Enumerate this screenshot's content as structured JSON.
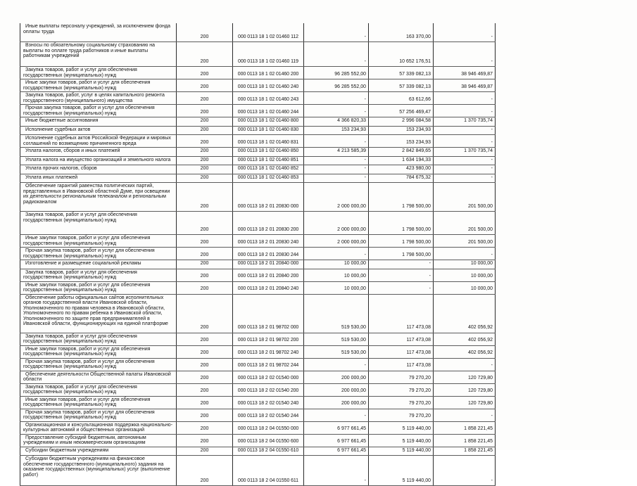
{
  "table": {
    "rows": [
      {
        "name": "Иные выплаты персоналу учреждений, за исключением фонда оплаты труда",
        "vr_code": "200",
        "budget_code": "000 0113 18 1 02 01460 112",
        "amount1": "-",
        "amount2": "163 370,00",
        "amount3": "-"
      },
      {
        "name": "Взносы по обязательному социальному страхованию  на выплаты по оплате труда работников и иные выплаты работникам учреждений",
        "vr_code": "200",
        "budget_code": "000 0113 18 1 02 01460 119",
        "amount1": "-",
        "amount2": "10 652 176,51",
        "amount3": "-"
      },
      {
        "name": "Закупка товаров, работ и услуг для обеспечения государственных (муниципальных) нужд",
        "vr_code": "200",
        "budget_code": "000 0113 18 1 02 01460 200",
        "amount1": "96 285 552,00",
        "amount2": "57 339 082,13",
        "amount3": "38 946 469,87"
      },
      {
        "name": "Иные закупки товаров, работ и услуг для обеспечения государственных (муниципальных) нужд",
        "vr_code": "200",
        "budget_code": "000 0113 18 1 02 01460 240",
        "amount1": "96 285 552,00",
        "amount2": "57 339 082,13",
        "amount3": "38 946 469,87"
      },
      {
        "name": "Закупка товаров, работ, услуг в целях капитального ремонта государственного (муниципального) имущества",
        "vr_code": "200",
        "budget_code": "000 0113 18 1 02 01460 243",
        "amount1": "-",
        "amount2": "63 612,66",
        "amount3": "-"
      },
      {
        "name": "Прочая закупка товаров, работ и услуг для обеспечения государственных (муниципальных) нужд",
        "vr_code": "200",
        "budget_code": "000 0113 18 1 02 01460 244",
        "amount1": "-",
        "amount2": "57 256 469,47",
        "amount3": "-"
      },
      {
        "name": "Иные бюджетные ассигнования",
        "vr_code": "200",
        "budget_code": "000 0113 18 1 02 01460 800",
        "amount1": "4 366 820,33",
        "amount2": "2 996 084,58",
        "amount3": "1 370 735,74"
      },
      {
        "name": "Исполнение судебных актов",
        "vr_code": "200",
        "budget_code": "000 0113 18 1 02 01460 830",
        "amount1": "153 234,93",
        "amount2": "153 234,93",
        "amount3": "-"
      },
      {
        "name": "Исполнение судебных актов Российской Федерации и мировых соглашений по возмещению причиненного вреда",
        "vr_code": "200",
        "budget_code": "000 0113 18 1 02 01460 831",
        "amount1": "-",
        "amount2": "153 234,93",
        "amount3": "-"
      },
      {
        "name": "Уплата налогов, сборов и иных платежей",
        "vr_code": "200",
        "budget_code": "000 0113 18 1 02 01460 850",
        "amount1": "4 213 585,39",
        "amount2": "2 842 849,65",
        "amount3": "1 370 735,74"
      },
      {
        "name": "Уплата налога на имущество организаций и земельного налога",
        "vr_code": "200",
        "budget_code": "000 0113 18 1 02 01460 851",
        "amount1": "-",
        "amount2": "1 634 194,33",
        "amount3": "-"
      },
      {
        "name": "Уплата прочих налогов, сборов",
        "vr_code": "200",
        "budget_code": "000 0113 18 1 02 01460 852",
        "amount1": "-",
        "amount2": "423 980,00",
        "amount3": "-"
      },
      {
        "name": "Уплата иных платежей",
        "vr_code": "200",
        "budget_code": "000 0113 18 1 02 01460 853",
        "amount1": "-",
        "amount2": "784 675,32",
        "amount3": "-"
      },
      {
        "name": "Обеспечение гарантий равенства политических партий, представленных в Ивановской областной Думе, при освещении их деятельности региональным телеканалом и региональным радиоканалом",
        "vr_code": "200",
        "budget_code": "000 0113 18 2 01 20830 000",
        "amount1": "2 000 000,00",
        "amount2": "1 798 500,00",
        "amount3": "201 500,00"
      },
      {
        "name": "Закупка товаров, работ и услуг для обеспечения государственных (муниципальных) нужд",
        "vr_code": "200",
        "budget_code": "000 0113 18 2 01 20830 200",
        "amount1": "2 000 000,00",
        "amount2": "1 798 500,00",
        "amount3": "201 500,00"
      },
      {
        "name": "Иные закупки товаров, работ и услуг для обеспечения государственных (муниципальных) нужд",
        "vr_code": "200",
        "budget_code": "000 0113 18 2 01 20830 240",
        "amount1": "2 000 000,00",
        "amount2": "1 798 500,00",
        "amount3": "201 500,00"
      },
      {
        "name": "Прочая закупка товаров, работ и услуг для обеспечения государственных (муниципальных) нужд",
        "vr_code": "200",
        "budget_code": "000 0113 18 2 01 20830 244",
        "amount1": "-",
        "amount2": "1 798 500,00",
        "amount3": "-"
      },
      {
        "name": "Изготовление и размещение социальной рекламы",
        "vr_code": "200",
        "budget_code": "000 0113 18 2 01 20840 000",
        "amount1": "10 000,00",
        "amount2": "-",
        "amount3": "10 000,00"
      },
      {
        "name": "Закупка товаров, работ и услуг для обеспечения государственных (муниципальных) нужд",
        "vr_code": "200",
        "budget_code": "000 0113 18 2 01 20840 200",
        "amount1": "10 000,00",
        "amount2": "-",
        "amount3": "10 000,00"
      },
      {
        "name": "Иные закупки товаров, работ и услуг для обеспечения государственных (муниципальных) нужд",
        "vr_code": "200",
        "budget_code": "000 0113 18 2 01 20840 240",
        "amount1": "10 000,00",
        "amount2": "-",
        "amount3": "10 000,00"
      },
      {
        "name": "Обеспечение работы официальных сайтов исполнительных органов государственной власти Ивановской области, Уполномоченного по правам человека в Ивановской области, Уполномоченного по правам ребенка в Ивановской области, Уполномоченного по защите прав предпринимателей в Ивановской области, функционирующих на единой платформе",
        "vr_code": "200",
        "budget_code": "000 0113 18 2 01 98702 000",
        "amount1": "519 530,00",
        "amount2": "117 473,08",
        "amount3": "402 056,92"
      },
      {
        "name": "Закупка товаров, работ и услуг для обеспечения государственных (муниципальных) нужд",
        "vr_code": "200",
        "budget_code": "000 0113 18 2 01 98702 200",
        "amount1": "519 530,00",
        "amount2": "117 473,08",
        "amount3": "402 056,92"
      },
      {
        "name": "Иные закупки товаров, работ и услуг для обеспечения государственных (муниципальных) нужд",
        "vr_code": "200",
        "budget_code": "000 0113 18 2 01 98702 240",
        "amount1": "519 530,00",
        "amount2": "117 473,08",
        "amount3": "402 056,92"
      },
      {
        "name": "Прочая закупка товаров, работ и услуг для обеспечения государственных (муниципальных) нужд",
        "vr_code": "200",
        "budget_code": "000 0113 18 2 01 98702 244",
        "amount1": "-",
        "amount2": "117 473,08",
        "amount3": "-"
      },
      {
        "name": "Обеспечение деятельности Общественной палаты Ивановской области",
        "vr_code": "200",
        "budget_code": "000 0113 18 2 02 01540 000",
        "amount1": "200 000,00",
        "amount2": "79 270,20",
        "amount3": "120 729,80"
      },
      {
        "name": "Закупка товаров, работ и услуг для обеспечения государственных (муниципальных) нужд",
        "vr_code": "200",
        "budget_code": "000 0113 18 2 02 01540 200",
        "amount1": "200 000,00",
        "amount2": "79 270,20",
        "amount3": "120 729,80"
      },
      {
        "name": "Иные закупки товаров, работ и услуг для обеспечения государственных (муниципальных) нужд",
        "vr_code": "200",
        "budget_code": "000 0113 18 2 02 01540 240",
        "amount1": "200 000,00",
        "amount2": "79 270,20",
        "amount3": "120 729,80"
      },
      {
        "name": "Прочая закупка товаров, работ и услуг для обеспечения государственных (муниципальных) нужд",
        "vr_code": "200",
        "budget_code": "000 0113 18 2 02 01540 244",
        "amount1": "-",
        "amount2": "79 270,20",
        "amount3": "-"
      },
      {
        "name": "Организационная и консультационная поддержка национально-культурных автономий и общественных организаций",
        "vr_code": "200",
        "budget_code": "000 0113 18 2 04 01550 000",
        "amount1": "6 977 661,45",
        "amount2": "5 119 440,00",
        "amount3": "1 858 221,45"
      },
      {
        "name": "Предоставление субсидий бюджетным, автономным учреждениям и иным некоммерческим организациям",
        "vr_code": "200",
        "budget_code": "000 0113 18 2 04 01550 600",
        "amount1": "6 977 661,45",
        "amount2": "5 119 440,00",
        "amount3": "1 858 221,45"
      },
      {
        "name": "Субсидии бюджетным учреждениям",
        "vr_code": "200",
        "budget_code": "000 0113 18 2 04 01550 610",
        "amount1": "6 977 661,45",
        "amount2": "5 119 440,00",
        "amount3": "1 858 221,45"
      },
      {
        "name": "Субсидии бюджетным учреждениям на финансовое обеспечение государственного (муниципального) задания на оказание государственных (муниципальных) услуг (выполнение работ)",
        "vr_code": "200",
        "budget_code": "000 0113 18 2 04 01550 611",
        "amount1": "-",
        "amount2": "5 119 440,00",
        "amount3": "-"
      }
    ]
  }
}
